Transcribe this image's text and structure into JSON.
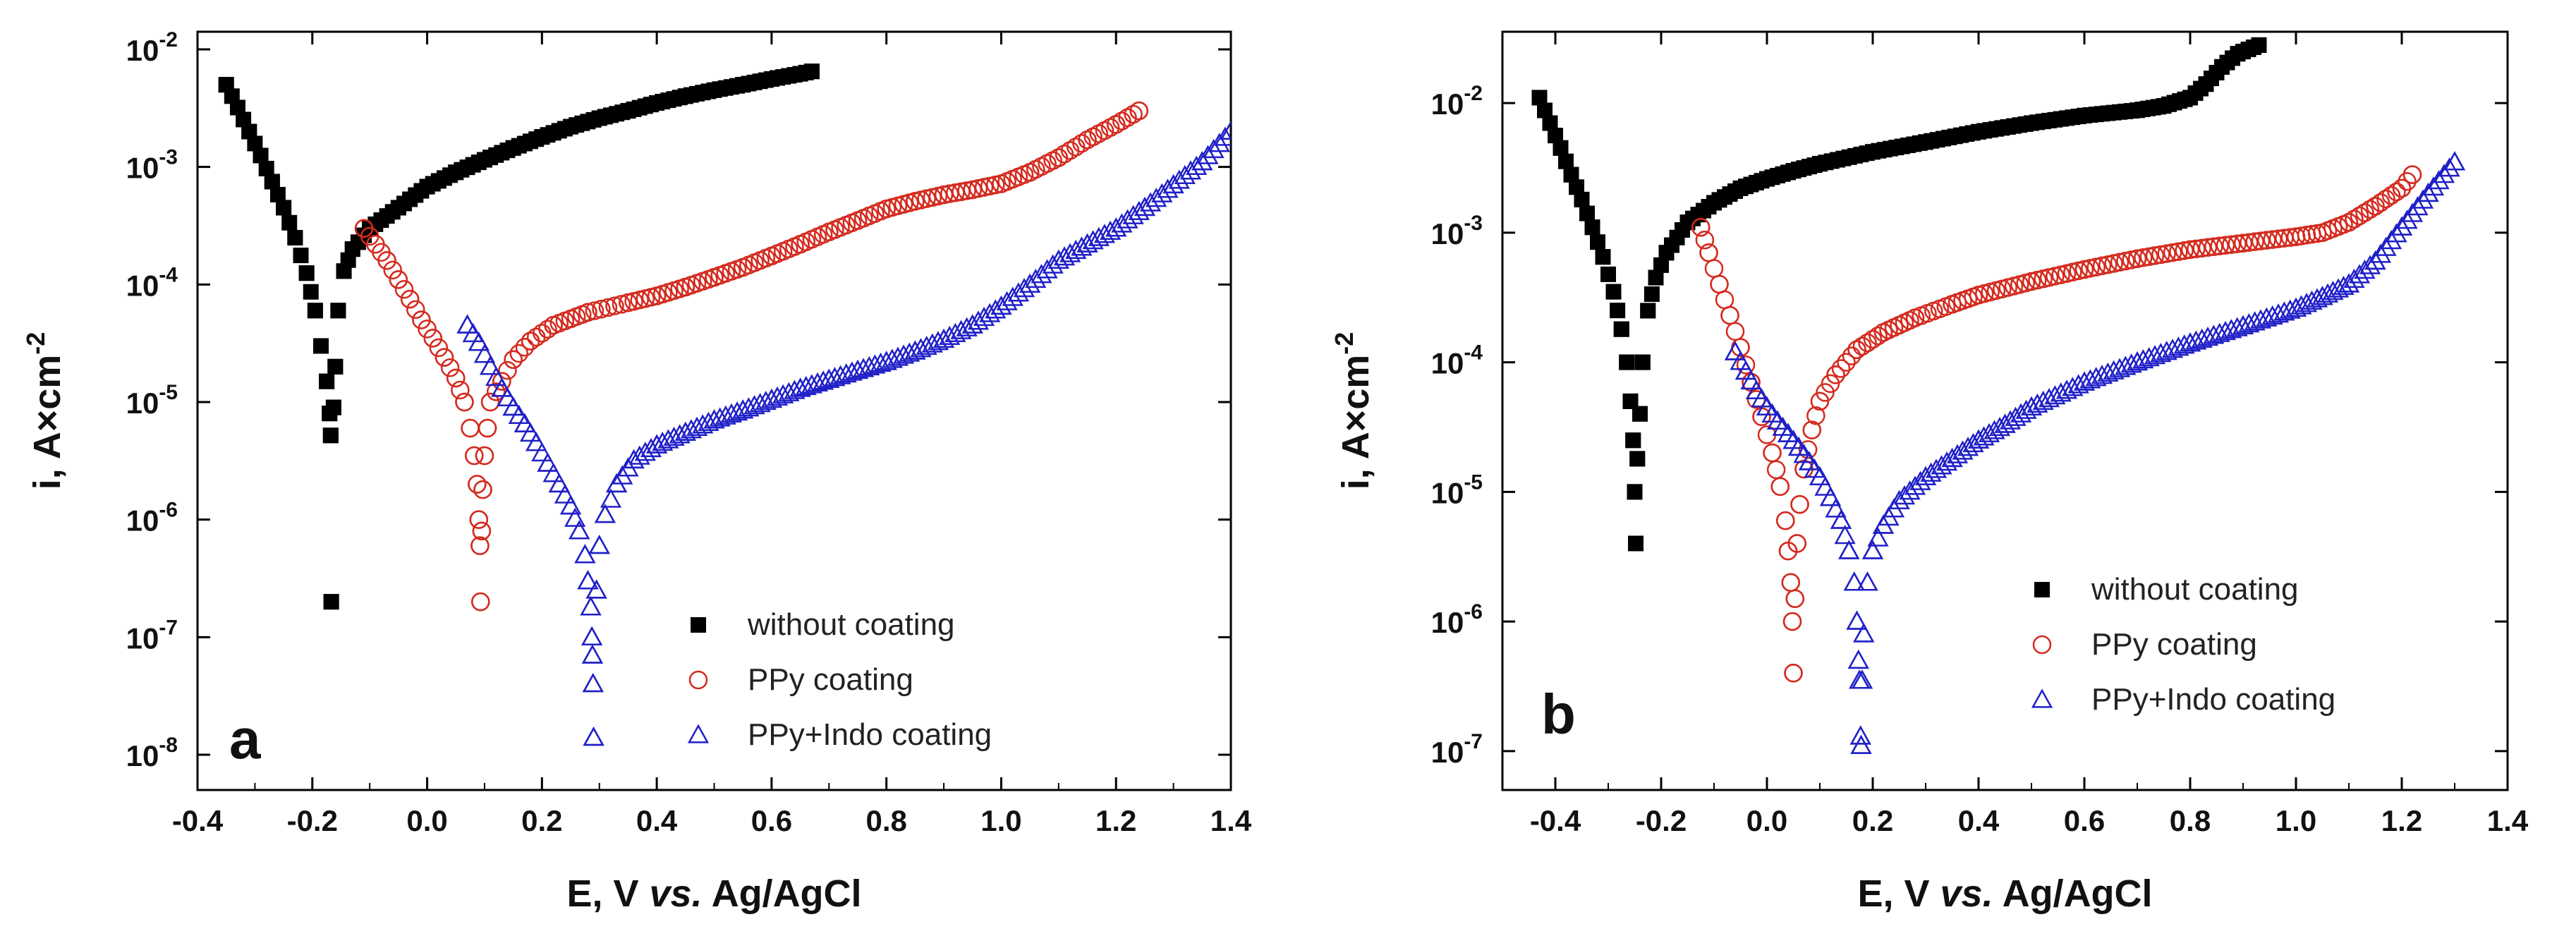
{
  "chart_data": [
    {
      "type": "scatter",
      "panel_label": "a",
      "xlabel": "E, V vs. Ag/AgCl",
      "xlabel_parts": [
        "E, V ",
        "vs.",
        " Ag/AgCl"
      ],
      "ylabel": "i, A×cm-2",
      "ylabel_main": "i, A×cm",
      "ylabel_exp": "-2",
      "yscale": "log",
      "xlim": [
        -0.4,
        1.4
      ],
      "ylim_log10": [
        -8.3,
        -1.85
      ],
      "xticks": [
        -0.4,
        -0.2,
        0.0,
        0.2,
        0.4,
        0.6,
        0.8,
        1.0,
        1.2,
        1.4
      ],
      "xtick_labels": [
        "-0.4",
        "-0.2",
        "0.0",
        "0.2",
        "0.4",
        "0.6",
        "0.8",
        "1.0",
        "1.2",
        "1.4"
      ],
      "ytick_exponents": [
        -8,
        -7,
        -6,
        -5,
        -4,
        -3,
        -2
      ],
      "ytick_labels": [
        "-8",
        "-7",
        "-6",
        "-5",
        "-4",
        "-3",
        "-2"
      ],
      "legend": {
        "position": "bottom-right"
      },
      "series": [
        {
          "name": "without coating",
          "marker": "filled-square",
          "color": "#000000",
          "points": [
            [
              -0.35,
              0.005
            ],
            [
              -0.33,
              0.0032
            ],
            [
              -0.31,
              0.002
            ],
            [
              -0.29,
              0.00125
            ],
            [
              -0.27,
              0.00075
            ],
            [
              -0.25,
              0.00045
            ],
            [
              -0.23,
              0.00025
            ],
            [
              -0.21,
              0.000125
            ],
            [
              -0.195,
              6e-05
            ],
            [
              -0.185,
              3e-05
            ],
            [
              -0.175,
              1.5e-05
            ],
            [
              -0.17,
              8e-06
            ],
            [
              -0.168,
              5.2e-06
            ],
            [
              -0.167,
              2e-07
            ],
            [
              -0.163,
              9e-06
            ],
            [
              -0.16,
              2e-05
            ],
            [
              -0.155,
              6e-05
            ],
            [
              -0.145,
              0.00013
            ],
            [
              -0.13,
              0.0002
            ],
            [
              -0.1,
              0.0003
            ],
            [
              -0.05,
              0.00045
            ],
            [
              0.0,
              0.00068
            ],
            [
              0.05,
              0.0009
            ],
            [
              0.1,
              0.00115
            ],
            [
              0.15,
              0.00145
            ],
            [
              0.2,
              0.0018
            ],
            [
              0.25,
              0.0022
            ],
            [
              0.3,
              0.0026
            ],
            [
              0.35,
              0.003
            ],
            [
              0.4,
              0.0035
            ],
            [
              0.45,
              0.004
            ],
            [
              0.5,
              0.0045
            ],
            [
              0.55,
              0.005
            ],
            [
              0.6,
              0.0056
            ],
            [
              0.65,
              0.0062
            ],
            [
              0.67,
              0.0065
            ]
          ]
        },
        {
          "name": "PPy coating",
          "marker": "open-circle",
          "color": "#d42a1e",
          "points": [
            [
              -0.11,
              0.0003
            ],
            [
              -0.09,
              0.00022
            ],
            [
              -0.07,
              0.00016
            ],
            [
              -0.05,
              0.00011
            ],
            [
              -0.03,
              7.5e-05
            ],
            [
              -0.01,
              5e-05
            ],
            [
              0.01,
              3.5e-05
            ],
            [
              0.03,
              2.4e-05
            ],
            [
              0.05,
              1.6e-05
            ],
            [
              0.065,
              1e-05
            ],
            [
              0.075,
              6e-06
            ],
            [
              0.082,
              3.5e-06
            ],
            [
              0.087,
              2e-06
            ],
            [
              0.09,
              1e-06
            ],
            [
              0.092,
              6e-07
            ],
            [
              0.093,
              2e-07
            ],
            [
              0.095,
              8e-07
            ],
            [
              0.097,
              1.8e-06
            ],
            [
              0.1,
              3.5e-06
            ],
            [
              0.105,
              6e-06
            ],
            [
              0.11,
              1e-05
            ],
            [
              0.13,
              1.5e-05
            ],
            [
              0.15,
              2.3e-05
            ],
            [
              0.18,
              3.3e-05
            ],
            [
              0.22,
              4.5e-05
            ],
            [
              0.28,
              5.8e-05
            ],
            [
              0.35,
              7e-05
            ],
            [
              0.4,
              8e-05
            ],
            [
              0.45,
              9.5e-05
            ],
            [
              0.5,
              0.000115
            ],
            [
              0.55,
              0.00014
            ],
            [
              0.6,
              0.000175
            ],
            [
              0.65,
              0.00022
            ],
            [
              0.7,
              0.00028
            ],
            [
              0.75,
              0.00035
            ],
            [
              0.8,
              0.00044
            ],
            [
              0.85,
              0.00051
            ],
            [
              0.9,
              0.00058
            ],
            [
              0.95,
              0.00064
            ],
            [
              1.0,
              0.00072
            ],
            [
              1.05,
              0.0009
            ],
            [
              1.1,
              0.0012
            ],
            [
              1.15,
              0.0017
            ],
            [
              1.2,
              0.0023
            ],
            [
              1.24,
              0.003
            ]
          ]
        },
        {
          "name": "PPy+Indo coating",
          "marker": "open-triangle",
          "color": "#2020c8",
          "points": [
            [
              0.07,
              4.5e-05
            ],
            [
              0.09,
              3.2e-05
            ],
            [
              0.11,
              2e-05
            ],
            [
              0.13,
              1.3e-05
            ],
            [
              0.15,
              9e-06
            ],
            [
              0.17,
              6.5e-06
            ],
            [
              0.19,
              4.5e-06
            ],
            [
              0.21,
              3e-06
            ],
            [
              0.23,
              2e-06
            ],
            [
              0.25,
              1.3e-06
            ],
            [
              0.265,
              8e-07
            ],
            [
              0.275,
              5e-07
            ],
            [
              0.28,
              3e-07
            ],
            [
              0.285,
              1.8e-07
            ],
            [
              0.287,
              1e-07
            ],
            [
              0.288,
              7e-08
            ],
            [
              0.289,
              4e-08
            ],
            [
              0.29,
              1.4e-08
            ],
            [
              0.295,
              2.5e-07
            ],
            [
              0.3,
              6e-07
            ],
            [
              0.31,
              1.1e-06
            ],
            [
              0.33,
              2e-06
            ],
            [
              0.36,
              3.2e-06
            ],
            [
              0.4,
              4.3e-06
            ],
            [
              0.45,
              5.5e-06
            ],
            [
              0.5,
              7e-06
            ],
            [
              0.55,
              8.5e-06
            ],
            [
              0.6,
              1.05e-05
            ],
            [
              0.65,
              1.3e-05
            ],
            [
              0.7,
              1.55e-05
            ],
            [
              0.75,
              1.85e-05
            ],
            [
              0.8,
              2.2e-05
            ],
            [
              0.85,
              2.7e-05
            ],
            [
              0.9,
              3.4e-05
            ],
            [
              0.95,
              4.5e-05
            ],
            [
              1.0,
              6.5e-05
            ],
            [
              1.05,
              0.0001
            ],
            [
              1.1,
              0.00016
            ],
            [
              1.15,
              0.00022
            ],
            [
              1.2,
              0.0003
            ],
            [
              1.25,
              0.00045
            ],
            [
              1.3,
              0.0007
            ],
            [
              1.35,
              0.0011
            ],
            [
              1.4,
              0.002
            ]
          ]
        }
      ]
    },
    {
      "type": "scatter",
      "panel_label": "b",
      "xlabel": "E, V vs. Ag/AgCl",
      "xlabel_parts": [
        "E, V ",
        "vs.",
        " Ag/AgCl"
      ],
      "ylabel": "i, A×cm-2",
      "ylabel_main": "i, A×cm",
      "ylabel_exp": "-2",
      "yscale": "log",
      "xlim": [
        -0.5,
        1.4
      ],
      "ylim_log10": [
        -7.3,
        -1.45
      ],
      "xticks": [
        -0.4,
        -0.2,
        0.0,
        0.2,
        0.4,
        0.6,
        0.8,
        1.0,
        1.2,
        1.4
      ],
      "xtick_labels": [
        "-0.4",
        "-0.2",
        "0.0",
        "0.2",
        "0.4",
        "0.6",
        "0.8",
        "1.0",
        "1.2",
        "1.4"
      ],
      "ytick_exponents": [
        -7,
        -6,
        -5,
        -4,
        -3,
        -2
      ],
      "ytick_labels": [
        "-7",
        "-6",
        "-5",
        "-4",
        "-3",
        "-2"
      ],
      "legend": {
        "position": "bottom-right"
      },
      "series": [
        {
          "name": "without coating",
          "marker": "filled-square",
          "color": "#000000",
          "points": [
            [
              -0.43,
              0.011
            ],
            [
              -0.41,
              0.007
            ],
            [
              -0.39,
              0.0045
            ],
            [
              -0.37,
              0.0028
            ],
            [
              -0.35,
              0.0018
            ],
            [
              -0.33,
              0.0011
            ],
            [
              -0.31,
              0.00065
            ],
            [
              -0.29,
              0.00035
            ],
            [
              -0.275,
              0.00018
            ],
            [
              -0.265,
              0.0001
            ],
            [
              -0.258,
              5e-05
            ],
            [
              -0.253,
              2.5e-05
            ],
            [
              -0.25,
              1e-05
            ],
            [
              -0.248,
              4e-06
            ],
            [
              -0.245,
              1.8e-05
            ],
            [
              -0.24,
              4e-05
            ],
            [
              -0.235,
              0.0001
            ],
            [
              -0.225,
              0.00025
            ],
            [
              -0.21,
              0.00045
            ],
            [
              -0.19,
              0.0007
            ],
            [
              -0.15,
              0.0012
            ],
            [
              -0.1,
              0.0017
            ],
            [
              -0.05,
              0.0022
            ],
            [
              0.0,
              0.0026
            ],
            [
              0.05,
              0.003
            ],
            [
              0.1,
              0.0034
            ],
            [
              0.2,
              0.0042
            ],
            [
              0.3,
              0.005
            ],
            [
              0.4,
              0.006
            ],
            [
              0.5,
              0.007
            ],
            [
              0.6,
              0.008
            ],
            [
              0.7,
              0.0088
            ],
            [
              0.75,
              0.0095
            ],
            [
              0.8,
              0.011
            ],
            [
              0.83,
              0.014
            ],
            [
              0.86,
              0.019
            ],
            [
              0.89,
              0.024
            ],
            [
              0.93,
              0.028
            ]
          ]
        },
        {
          "name": "PPy coating",
          "marker": "open-circle",
          "color": "#d42a1e",
          "points": [
            [
              -0.125,
              0.0011
            ],
            [
              -0.11,
              0.0007
            ],
            [
              -0.09,
              0.0004
            ],
            [
              -0.07,
              0.00023
            ],
            [
              -0.05,
              0.00013
            ],
            [
              -0.03,
              7e-05
            ],
            [
              -0.01,
              3.8e-05
            ],
            [
              0.01,
              2e-05
            ],
            [
              0.025,
              1.1e-05
            ],
            [
              0.035,
              6e-06
            ],
            [
              0.04,
              3.5e-06
            ],
            [
              0.045,
              2e-06
            ],
            [
              0.048,
              1e-06
            ],
            [
              0.05,
              4e-07
            ],
            [
              0.053,
              1.5e-06
            ],
            [
              0.057,
              4e-06
            ],
            [
              0.062,
              8e-06
            ],
            [
              0.07,
              1.5e-05
            ],
            [
              0.085,
              3e-05
            ],
            [
              0.1,
              5e-05
            ],
            [
              0.13,
              8e-05
            ],
            [
              0.17,
              0.000125
            ],
            [
              0.22,
              0.00017
            ],
            [
              0.28,
              0.00022
            ],
            [
              0.35,
              0.00028
            ],
            [
              0.4,
              0.00033
            ],
            [
              0.5,
              0.00042
            ],
            [
              0.6,
              0.00052
            ],
            [
              0.7,
              0.00063
            ],
            [
              0.8,
              0.00074
            ],
            [
              0.9,
              0.00083
            ],
            [
              1.0,
              0.00093
            ],
            [
              1.05,
              0.001
            ],
            [
              1.1,
              0.0012
            ],
            [
              1.15,
              0.0016
            ],
            [
              1.2,
              0.0022
            ],
            [
              1.22,
              0.0028
            ]
          ]
        },
        {
          "name": "PPy+Indo coating",
          "marker": "open-triangle",
          "color": "#2020c8",
          "points": [
            [
              -0.06,
              0.00012
            ],
            [
              -0.04,
              8.5e-05
            ],
            [
              -0.02,
              6e-05
            ],
            [
              0.0,
              4.5e-05
            ],
            [
              0.02,
              3.5e-05
            ],
            [
              0.04,
              2.8e-05
            ],
            [
              0.06,
              2.2e-05
            ],
            [
              0.08,
              1.7e-05
            ],
            [
              0.1,
              1.3e-05
            ],
            [
              0.12,
              9e-06
            ],
            [
              0.14,
              6e-06
            ],
            [
              0.155,
              3.5e-06
            ],
            [
              0.165,
              2e-06
            ],
            [
              0.17,
              1e-06
            ],
            [
              0.173,
              5e-07
            ],
            [
              0.175,
              3.5e-07
            ],
            [
              0.177,
              1.3e-07
            ],
            [
              0.178,
              1.1e-07
            ],
            [
              0.18,
              3.5e-07
            ],
            [
              0.183,
              8e-07
            ],
            [
              0.19,
              2e-06
            ],
            [
              0.2,
              3.5e-06
            ],
            [
              0.22,
              5.5e-06
            ],
            [
              0.25,
              8.5e-06
            ],
            [
              0.3,
              1.3e-05
            ],
            [
              0.35,
              1.8e-05
            ],
            [
              0.4,
              2.5e-05
            ],
            [
              0.45,
              3.3e-05
            ],
            [
              0.5,
              4.5e-05
            ],
            [
              0.6,
              7e-05
            ],
            [
              0.7,
              0.0001
            ],
            [
              0.8,
              0.00014
            ],
            [
              0.9,
              0.00019
            ],
            [
              1.0,
              0.00026
            ],
            [
              1.05,
              0.00032
            ],
            [
              1.1,
              0.0004
            ],
            [
              1.15,
              0.0006
            ],
            [
              1.2,
              0.0011
            ],
            [
              1.25,
              0.002
            ],
            [
              1.3,
              0.0035
            ]
          ]
        }
      ]
    }
  ]
}
